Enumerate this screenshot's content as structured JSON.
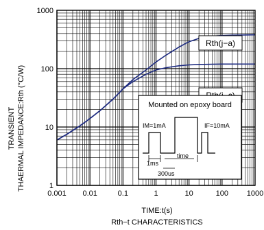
{
  "chart_data": {
    "type": "line",
    "xscale": "log",
    "yscale": "log",
    "xlim": [
      0.001,
      1000
    ],
    "ylim": [
      1,
      1000
    ],
    "grid": true,
    "xlabel": "TIME:t(s)",
    "ylabel_line1": "TRANSIENT",
    "ylabel_line2": "THAERMAL IMPEDANCE:Rth (°C/W)",
    "caption": "Rth−t CHARACTERISTICS",
    "x_tick_labels": [
      "0.001",
      "0.01",
      "0.1",
      "1",
      "10",
      "100",
      "1000"
    ],
    "x_tick_values": [
      0.001,
      0.01,
      0.1,
      1,
      10,
      100,
      1000
    ],
    "y_tick_labels": [
      "1",
      "10",
      "100",
      "1000"
    ],
    "y_tick_values": [
      1,
      10,
      100,
      1000
    ],
    "line_color": "#1c2a80",
    "series": [
      {
        "name": "Rth(j−a)",
        "x": [
          0.001,
          0.002,
          0.005,
          0.01,
          0.02,
          0.05,
          0.1,
          0.2,
          0.5,
          1,
          2,
          5,
          10,
          20,
          50,
          100,
          200,
          500,
          1000
        ],
        "y": [
          6,
          7.5,
          10.5,
          14,
          19,
          30,
          45,
          65,
          95,
          130,
          170,
          235,
          290,
          330,
          360,
          370,
          375,
          378,
          380
        ]
      },
      {
        "name": "Rth(j−c)",
        "x": [
          0.001,
          0.002,
          0.005,
          0.01,
          0.02,
          0.05,
          0.1,
          0.2,
          0.5,
          1,
          2,
          5,
          10,
          20,
          50,
          100,
          200,
          500,
          1000
        ],
        "y": [
          6,
          7.5,
          10.5,
          14,
          19,
          30,
          45,
          60,
          80,
          95,
          104,
          112,
          116,
          118,
          119,
          120,
          120,
          120,
          120
        ]
      }
    ],
    "annotation": {
      "title": "Mounted on epoxy board",
      "im_label": "IM=1mA",
      "if_label": "IF=10mA",
      "time_label": "time",
      "t1_label": "1ms",
      "t2_label": "300us"
    }
  }
}
